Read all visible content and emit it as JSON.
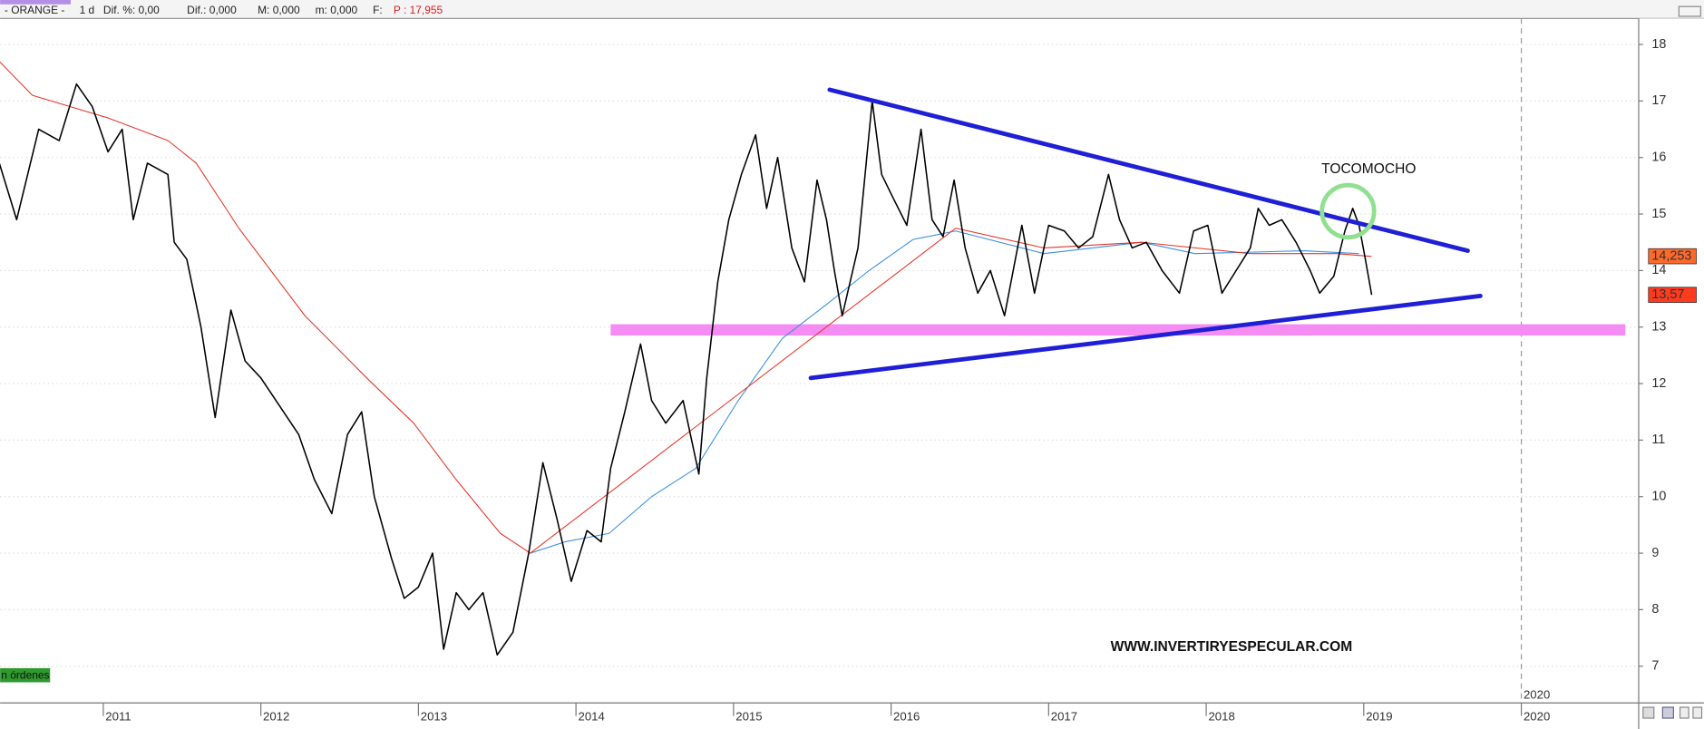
{
  "chart_data": {
    "type": "line",
    "header": [
      "- ORANGE -",
      "1 d",
      "Dif. %: 0,00",
      "Dif.: 0,000",
      "M: 0,000",
      "m: 0,000",
      "F:",
      "P : 17,955"
    ],
    "xlim": [
      2010.345,
      2020.745
    ],
    "xticks": [
      2011,
      2012,
      2013,
      2014,
      2015,
      2016,
      2017,
      2018,
      2019,
      2020
    ],
    "ylim": [
      6.35,
      18.46
    ],
    "yticks": [
      7,
      8,
      9,
      10,
      11,
      12,
      13,
      14,
      15,
      16,
      17,
      18
    ],
    "grid": true,
    "vline": 2020,
    "vline_label": "2020",
    "badge": "n órdenes",
    "series": [
      {
        "name": "ORANGE",
        "color": "#000000",
        "x": [
          2010.34,
          2010.45,
          2010.59,
          2010.72,
          2010.83,
          2010.93,
          2011.03,
          2011.12,
          2011.19,
          2011.28,
          2011.41,
          2011.45,
          2011.53,
          2011.62,
          2011.71,
          2011.81,
          2011.9,
          2012.0,
          2012.12,
          2012.24,
          2012.34,
          2012.45,
          2012.55,
          2012.64,
          2012.72,
          2012.83,
          2012.91,
          2013.0,
          2013.09,
          2013.16,
          2013.24,
          2013.32,
          2013.41,
          2013.5,
          2013.6,
          2013.7,
          2013.79,
          2013.88,
          2013.97,
          2014.07,
          2014.16,
          2014.22,
          2014.31,
          2014.41,
          2014.48,
          2014.57,
          2014.68,
          2014.78,
          2014.83,
          2014.9,
          2014.97,
          2015.05,
          2015.14,
          2015.21,
          2015.28,
          2015.37,
          2015.45,
          2015.53,
          2015.59,
          2015.64,
          2015.69,
          2015.79,
          2015.88,
          2015.94,
          2016.01,
          2016.1,
          2016.19,
          2016.26,
          2016.33,
          2016.4,
          2016.47,
          2016.55,
          2016.63,
          2016.72,
          2016.83,
          2016.91,
          2017.0,
          2017.1,
          2017.19,
          2017.28,
          2017.38,
          2017.45,
          2017.53,
          2017.62,
          2017.72,
          2017.83,
          2017.92,
          2018.01,
          2018.1,
          2018.19,
          2018.28,
          2018.33,
          2018.4,
          2018.48,
          2018.57,
          2018.66,
          2018.72,
          2018.81,
          2018.88,
          2018.93,
          2018.97,
          2019.01,
          2019.05
        ],
        "values": [
          15.9,
          14.9,
          16.5,
          16.3,
          17.3,
          16.9,
          16.1,
          16.5,
          14.9,
          15.9,
          15.7,
          14.5,
          14.2,
          13.0,
          11.4,
          13.3,
          12.4,
          12.1,
          11.6,
          11.1,
          10.3,
          9.7,
          11.1,
          11.5,
          10.0,
          8.9,
          8.2,
          8.4,
          9.0,
          7.3,
          8.3,
          8.0,
          8.3,
          7.2,
          7.6,
          9.0,
          10.6,
          9.6,
          8.5,
          9.4,
          9.2,
          10.5,
          11.5,
          12.7,
          11.7,
          11.3,
          11.7,
          10.4,
          12.1,
          13.8,
          14.9,
          15.7,
          16.4,
          15.1,
          16.0,
          14.4,
          13.8,
          15.6,
          14.9,
          14.0,
          13.2,
          14.4,
          17.0,
          15.7,
          15.3,
          14.8,
          16.5,
          14.9,
          14.6,
          15.6,
          14.4,
          13.6,
          14.0,
          13.2,
          14.8,
          13.6,
          14.8,
          14.7,
          14.4,
          14.6,
          15.7,
          14.9,
          14.4,
          14.5,
          14.0,
          13.6,
          14.7,
          14.8,
          13.6,
          14.0,
          14.4,
          15.1,
          14.8,
          14.9,
          14.5,
          14.0,
          13.6,
          13.9,
          14.7,
          15.1,
          14.8,
          14.2,
          13.57
        ],
        "end_label": "13,57",
        "end_value": 13.57,
        "end_label_color": "#ff3b1f"
      },
      {
        "name": "MA red",
        "color": "#e8372c",
        "x": [
          2010.34,
          2010.55,
          2011.03,
          2011.41,
          2011.59,
          2011.86,
          2012.28,
          2012.69,
          2012.97,
          2013.24,
          2013.52,
          2013.71,
          2016.41,
          2016.97,
          2017.59,
          2018.28,
          2018.83,
          2019.05
        ],
        "values": [
          17.7,
          17.1,
          16.7,
          16.3,
          15.9,
          14.75,
          13.2,
          12.05,
          11.3,
          10.3,
          9.35,
          9.0,
          14.75,
          14.4,
          14.5,
          14.3,
          14.3,
          14.25
        ],
        "end_label": "14,253",
        "end_value": 14.253,
        "end_label_color": "#ff6a2a"
      },
      {
        "name": "MA blue",
        "color": "#3b8fe0",
        "x": [
          2013.71,
          2013.93,
          2014.21,
          2014.48,
          2014.76,
          2015.03,
          2015.31,
          2015.59,
          2015.86,
          2016.14,
          2016.41,
          2016.97,
          2017.59,
          2017.93,
          2018.62,
          2018.97
        ],
        "values": [
          9.0,
          9.2,
          9.35,
          10.0,
          10.5,
          11.7,
          12.8,
          13.4,
          14.0,
          14.55,
          14.7,
          14.3,
          14.5,
          14.3,
          14.35,
          14.3
        ]
      }
    ],
    "trendlines": [
      {
        "color": "#1f1fd6",
        "x": [
          2015.61,
          2019.66
        ],
        "y": [
          17.2,
          14.35
        ]
      },
      {
        "color": "#1f1fd6",
        "x": [
          2015.49,
          2019.74
        ],
        "y": [
          12.1,
          13.55
        ]
      }
    ],
    "band": {
      "color": "#f48cf4",
      "x": [
        2014.22,
        2020.66
      ],
      "y": [
        12.85,
        13.05
      ]
    },
    "circle": {
      "color": "#8fe08f",
      "x": 2018.9,
      "y": 15.05
    },
    "annotations": [
      "TOCOMOCHO",
      "WWW.INVERTIRYESPECULAR.COM"
    ]
  }
}
